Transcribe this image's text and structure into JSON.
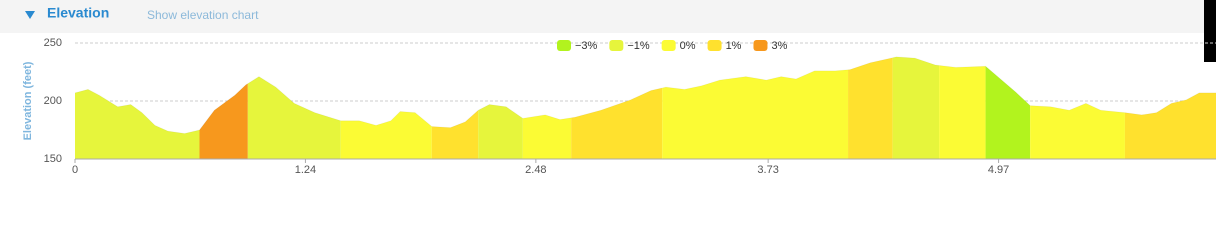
{
  "header": {
    "title": "Elevation",
    "link": "Show elevation chart"
  },
  "chart_data": {
    "type": "area",
    "ylabel": "Elevation (feet)",
    "x": [
      0,
      0.07,
      0.13,
      0.23,
      0.3,
      0.36,
      0.43,
      0.5,
      0.59,
      0.67,
      0.75,
      0.86,
      0.92,
      0.99,
      1.08,
      1.18,
      1.29,
      1.43,
      1.53,
      1.62,
      1.7,
      1.75,
      1.83,
      1.92,
      2.02,
      2.1,
      2.17,
      2.23,
      2.32,
      2.41,
      2.53,
      2.61,
      2.69,
      2.83,
      2.99,
      3.1,
      3.18,
      3.28,
      3.37,
      3.47,
      3.61,
      3.72,
      3.8,
      3.88,
      3.98,
      4.09,
      4.17,
      4.28,
      4.42,
      4.52,
      4.63,
      4.74,
      4.9,
      4.98,
      5.06,
      5.14,
      5.25,
      5.35,
      5.44,
      5.52,
      5.65,
      5.74,
      5.82,
      5.9,
      5.98,
      6.05,
      6.14
    ],
    "values": [
      207,
      210,
      205,
      195,
      197,
      190,
      179,
      174,
      172,
      175,
      192,
      205,
      214,
      221,
      212,
      198,
      190,
      183,
      183,
      179,
      183,
      191,
      190,
      178,
      177,
      182,
      192,
      197,
      195,
      185,
      188,
      184,
      186,
      192,
      201,
      209,
      212,
      210,
      213,
      218,
      221,
      218,
      221,
      219,
      226,
      226,
      227,
      233,
      238,
      237,
      231,
      229,
      230,
      219,
      208,
      196,
      195,
      192,
      198,
      192,
      190,
      188,
      190,
      198,
      201,
      207,
      207
    ],
    "xlim": [
      0,
      6.14
    ],
    "ylim": [
      150,
      250
    ],
    "xticks": [
      0,
      1.24,
      2.48,
      3.73,
      4.97
    ],
    "yticks": [
      150,
      200,
      250
    ],
    "grid": true,
    "legend": [
      {
        "name": "−3%",
        "color": "#b2f31e"
      },
      {
        "name": "−1%",
        "color": "#e6f53c"
      },
      {
        "name": "0%",
        "color": "#fbfb34"
      },
      {
        "name": "1%",
        "color": "#ffe12e"
      },
      {
        "name": "3%",
        "color": "#f7981d"
      }
    ],
    "segments": [
      {
        "start": 0,
        "end": 0.67,
        "color": "#e6f53c"
      },
      {
        "start": 0.67,
        "end": 0.93,
        "color": "#f7981d"
      },
      {
        "start": 0.93,
        "end": 1.43,
        "color": "#e6f53c"
      },
      {
        "start": 1.43,
        "end": 1.92,
        "color": "#fbfb34"
      },
      {
        "start": 1.92,
        "end": 2.17,
        "color": "#ffe12e"
      },
      {
        "start": 2.17,
        "end": 2.41,
        "color": "#e6f53c"
      },
      {
        "start": 2.41,
        "end": 2.67,
        "color": "#fbfb34"
      },
      {
        "start": 2.67,
        "end": 3.16,
        "color": "#ffe12e"
      },
      {
        "start": 3.16,
        "end": 4.16,
        "color": "#fbfb34"
      },
      {
        "start": 4.16,
        "end": 4.4,
        "color": "#ffe12e"
      },
      {
        "start": 4.4,
        "end": 4.65,
        "color": "#e6f53c"
      },
      {
        "start": 4.65,
        "end": 4.9,
        "color": "#fbfb34"
      },
      {
        "start": 4.9,
        "end": 5.14,
        "color": "#b2f31e"
      },
      {
        "start": 5.14,
        "end": 5.65,
        "color": "#fbfb34"
      },
      {
        "start": 5.65,
        "end": 6.14,
        "color": "#ffe12e"
      }
    ]
  }
}
